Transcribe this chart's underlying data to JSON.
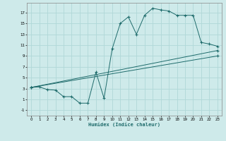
{
  "xlabel": "Humidex (Indice chaleur)",
  "bg_color": "#ceeaea",
  "grid_color": "#b0d8d8",
  "line_color": "#1e6b6b",
  "xlim": [
    -0.5,
    23.5
  ],
  "ylim": [
    -2.0,
    18.8
  ],
  "xticks": [
    0,
    1,
    2,
    3,
    4,
    5,
    6,
    7,
    8,
    9,
    10,
    11,
    12,
    13,
    14,
    15,
    16,
    17,
    18,
    19,
    20,
    21,
    22,
    23
  ],
  "yticks": [
    -1,
    1,
    3,
    5,
    7,
    9,
    11,
    13,
    15,
    17
  ],
  "line1_x": [
    0,
    1,
    2,
    3,
    4,
    5,
    6,
    7,
    8,
    9,
    10,
    11,
    12,
    13,
    14,
    15,
    16,
    17,
    18,
    19,
    20,
    21,
    22,
    23
  ],
  "line1_y": [
    3.2,
    3.3,
    2.8,
    2.7,
    1.5,
    1.5,
    0.3,
    0.3,
    6.0,
    1.2,
    10.3,
    15.0,
    16.2,
    13.0,
    16.5,
    17.8,
    17.5,
    17.3,
    16.5,
    16.5,
    16.5,
    11.5,
    11.2,
    10.8
  ],
  "line2_x": [
    0,
    23
  ],
  "line2_y": [
    3.2,
    10.0
  ],
  "line3_x": [
    0,
    23
  ],
  "line3_y": [
    3.2,
    9.0
  ],
  "markers_line2_x": [
    0,
    23
  ],
  "markers_line2_y": [
    3.2,
    10.0
  ],
  "markers_line3_x": [
    0,
    23
  ],
  "markers_line3_y": [
    3.2,
    9.0
  ]
}
